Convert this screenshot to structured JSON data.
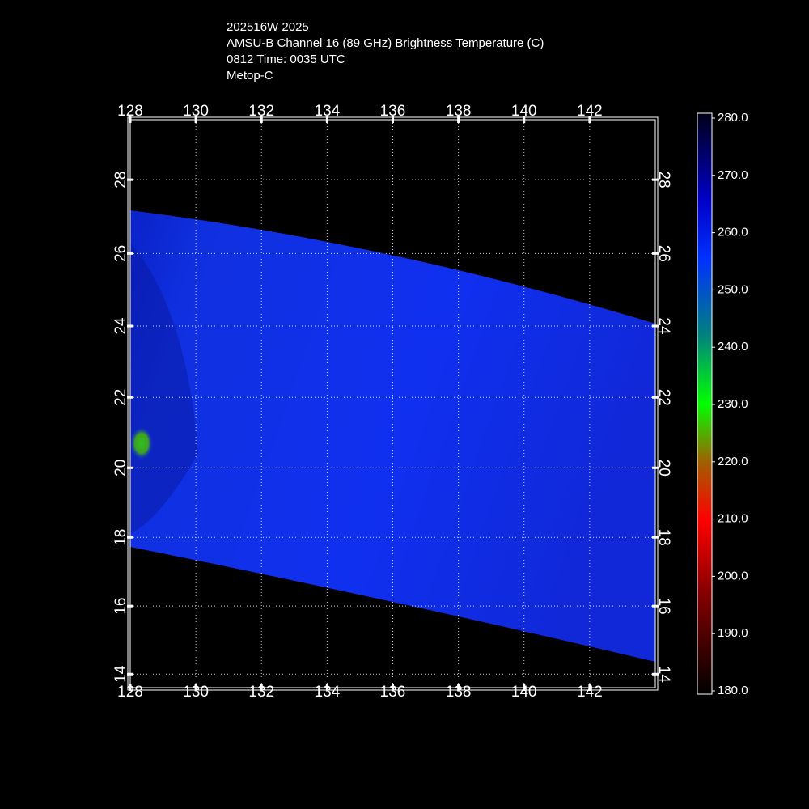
{
  "chart_data": {
    "type": "map",
    "title_lines": [
      "202516W 2025",
      "AMSU-B Channel 16 (89 GHz) Brightness Temperature (C)",
      "0812 Time: 0035 UTC",
      "Metop-C"
    ],
    "projection": "mercator",
    "xlim": [
      128,
      144
    ],
    "ylim": [
      13.6,
      29.6
    ],
    "xticks": [
      128,
      130,
      132,
      134,
      136,
      138,
      140,
      142
    ],
    "yticks": [
      14,
      16,
      18,
      20,
      22,
      24,
      26,
      28
    ],
    "grid": true,
    "colorbar": {
      "lim": [
        180,
        280
      ],
      "ticks": [
        {
          "value": 180,
          "label": "180.0"
        },
        {
          "value": 190,
          "label": "190.0"
        },
        {
          "value": 200,
          "label": "200.0"
        },
        {
          "value": 210,
          "label": "210.0"
        },
        {
          "value": 220,
          "label": "220.0"
        },
        {
          "value": 230,
          "label": "230.0"
        },
        {
          "value": 240,
          "label": "240.0"
        },
        {
          "value": 250,
          "label": "250.0"
        },
        {
          "value": 260,
          "label": "260.0"
        },
        {
          "value": 270,
          "label": "270.0"
        },
        {
          "value": 280,
          "label": "280.0"
        }
      ]
    }
  }
}
